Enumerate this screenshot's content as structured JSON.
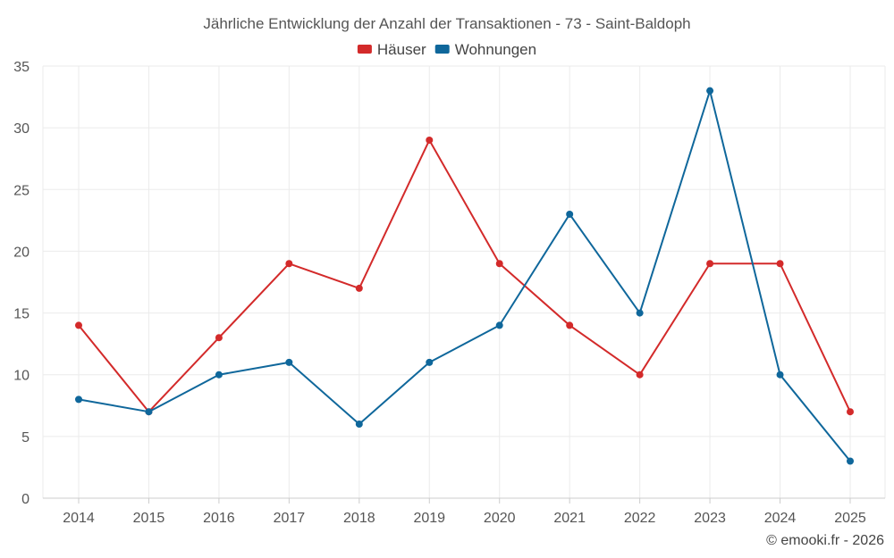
{
  "chart_data": {
    "type": "line",
    "title": "Jährliche Entwicklung der Anzahl der Transaktionen - 73 - Saint-Baldoph",
    "xlabel": "",
    "ylabel": "",
    "categories": [
      "2014",
      "2015",
      "2016",
      "2017",
      "2018",
      "2019",
      "2020",
      "2021",
      "2022",
      "2023",
      "2024",
      "2025"
    ],
    "ylim": [
      0,
      35
    ],
    "yticks": [
      0,
      5,
      10,
      15,
      20,
      25,
      30,
      35
    ],
    "grid": true,
    "legend_position": "top-center",
    "series": [
      {
        "name": "Häuser",
        "color": "#d32a2a",
        "values": [
          14,
          7,
          13,
          19,
          17,
          29,
          19,
          14,
          10,
          19,
          19,
          7
        ]
      },
      {
        "name": "Wohnungen",
        "color": "#0f679b",
        "values": [
          8,
          7,
          10,
          11,
          6,
          11,
          14,
          23,
          15,
          33,
          10,
          3
        ]
      }
    ]
  },
  "credit": "© emooki.fr - 2026"
}
